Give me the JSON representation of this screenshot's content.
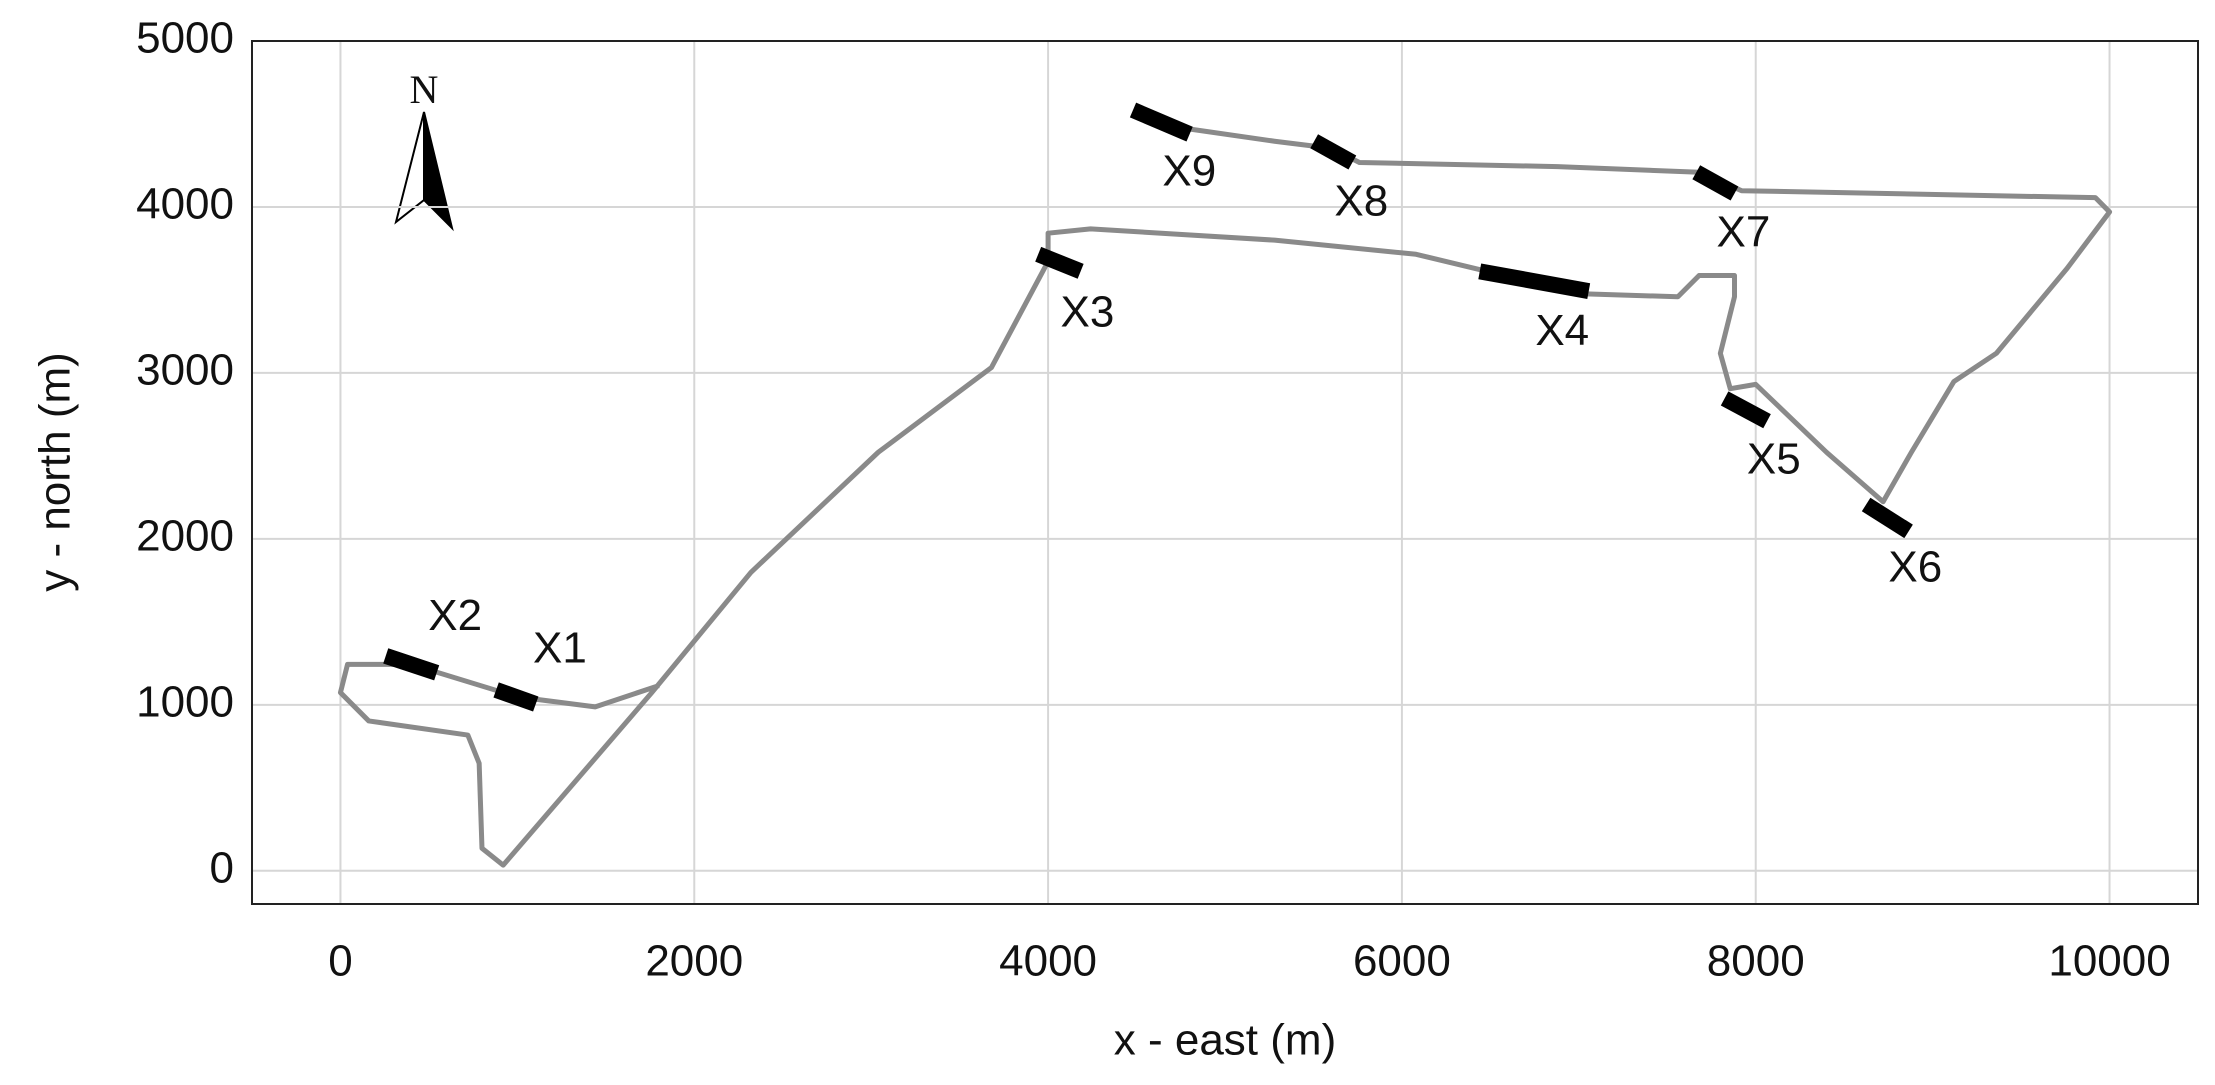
{
  "chart_data": {
    "type": "line",
    "xlabel": "x - east (m)",
    "ylabel": "y - north (m)",
    "north_label": "N",
    "x": [
      4480,
      4720,
      5280,
      5600,
      5760,
      6880,
      7680,
      7920,
      9920,
      10000,
      9760,
      9360,
      9120,
      8880,
      8720,
      8400,
      8000,
      7856,
      7800,
      7880,
      7880,
      7680,
      7560,
      7040,
      6480,
      6080,
      5280,
      4240,
      4000,
      4000,
      3680,
      3040,
      2320,
      1760,
      920,
      800,
      784,
      720,
      160,
      0,
      40,
      400,
      1000,
      1440,
      1800
    ],
    "values": [
      4567,
      4482,
      4396,
      4354,
      4268,
      4243,
      4209,
      4098,
      4056,
      3970,
      3630,
      3118,
      2948,
      2522,
      2224,
      2522,
      2931,
      2905,
      3118,
      3459,
      3587,
      3587,
      3459,
      3476,
      3612,
      3715,
      3800,
      3868,
      3842,
      3672,
      3033,
      2522,
      1798,
      1074,
      34,
      136,
      648,
      818,
      903,
      1074,
      1244,
      1244,
      1048,
      988,
      1116
    ],
    "color": "#8a8a8a",
    "annotations": [
      {
        "text": "X1",
        "x": [
          880,
          1104
        ],
        "y": [
          1090,
          1005
        ]
      },
      {
        "text": "X2",
        "x": [
          256,
          544
        ],
        "y": [
          1295,
          1193
        ]
      },
      {
        "text": "X3",
        "x": [
          3944,
          4184
        ],
        "y": [
          3715,
          3612
        ]
      },
      {
        "text": "X4",
        "x": [
          6440,
          7056
        ],
        "y": [
          3612,
          3493
        ]
      },
      {
        "text": "X5",
        "x": [
          7824,
          8064
        ],
        "y": [
          2846,
          2709
        ]
      },
      {
        "text": "X6",
        "x": [
          8624,
          8864
        ],
        "y": [
          2207,
          2045
        ]
      },
      {
        "text": "X7",
        "x": [
          7664,
          7880
        ],
        "y": [
          4209,
          4081
        ]
      },
      {
        "text": "X8",
        "x": [
          5504,
          5720
        ],
        "y": [
          4396,
          4268
        ]
      },
      {
        "text": "X9",
        "x": [
          4480,
          4800
        ],
        "y": [
          4584,
          4439
        ]
      }
    ],
    "marker_color": "#000000",
    "xlim": [
      -500,
      10500
    ],
    "ylim": [
      -200,
      5000
    ],
    "xticks": [
      0,
      2000,
      4000,
      6000,
      8000,
      10000
    ],
    "yticks": [
      0,
      1000,
      2000,
      3000,
      4000,
      5000
    ],
    "grid": true
  }
}
